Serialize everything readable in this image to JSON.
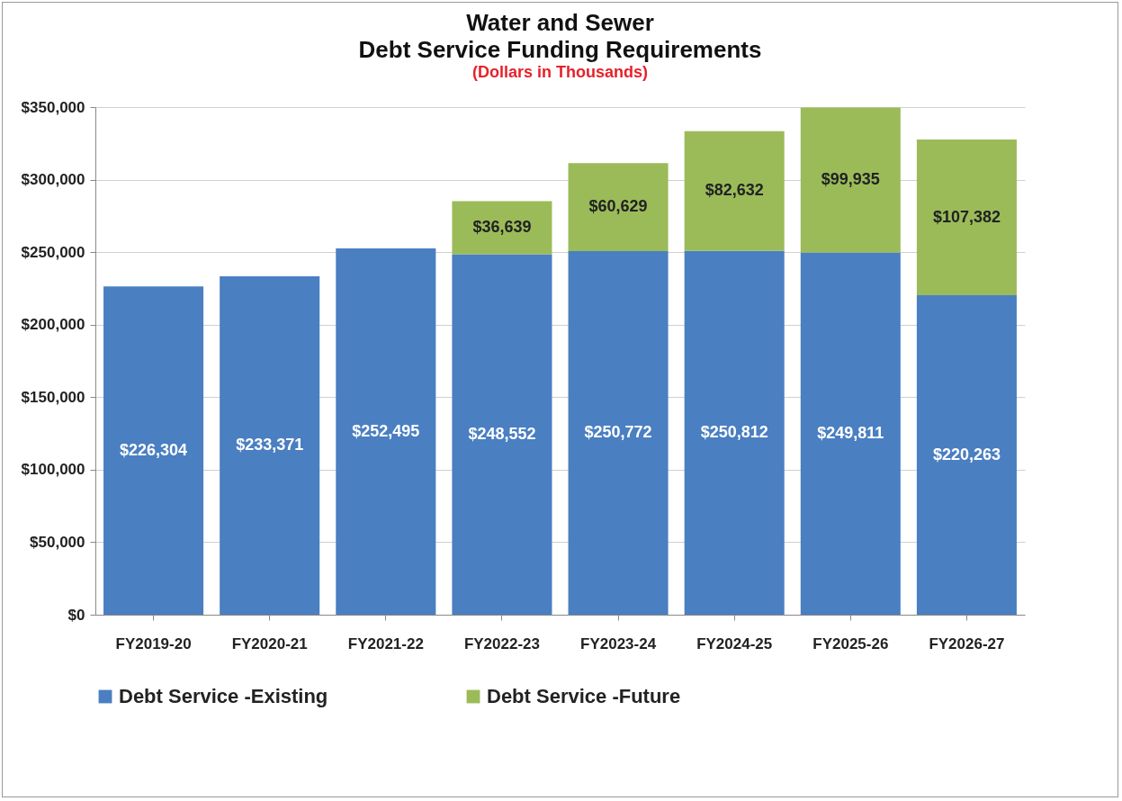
{
  "chart_data": {
    "type": "bar",
    "title": "Water and Sewer\nDebt Service Funding Requirements",
    "subtitle": "(Dollars in Thousands)",
    "stacked": true,
    "categories": [
      "FY2019-20",
      "FY2020-21",
      "FY2021-22",
      "FY2022-23",
      "FY2023-24",
      "FY2024-25",
      "FY2025-26",
      "FY2026-27"
    ],
    "series": [
      {
        "name": "Debt Service -Existing",
        "color": "#4a7fc1",
        "values": [
          226304,
          233371,
          252495,
          248552,
          250772,
          250812,
          249811,
          220263
        ],
        "value_labels": [
          "$226,304",
          "$233,371",
          "$252,495",
          "$248,552",
          "$250,772",
          "$250,812",
          "$249,811",
          "$220,263"
        ]
      },
      {
        "name": "Debt Service -Future",
        "color": "#9bbb59",
        "values": [
          null,
          null,
          null,
          36639,
          60629,
          82632,
          99935,
          107382
        ],
        "value_labels": [
          null,
          null,
          null,
          "$36,639",
          "$60,629",
          "$82,632",
          "$99,935",
          "$107,382"
        ]
      }
    ],
    "ylim": [
      0,
      350000
    ],
    "yticks": [
      {
        "value": 0,
        "label": "$0"
      },
      {
        "value": 50000,
        "label": "$50,000"
      },
      {
        "value": 100000,
        "label": "$100,000"
      },
      {
        "value": 150000,
        "label": "$150,000"
      },
      {
        "value": 200000,
        "label": "$200,000"
      },
      {
        "value": 250000,
        "label": "$250,000"
      },
      {
        "value": 300000,
        "label": "$300,000"
      },
      {
        "value": 350000,
        "label": "$350,000"
      }
    ],
    "grid": "y",
    "legend": "bottom"
  }
}
